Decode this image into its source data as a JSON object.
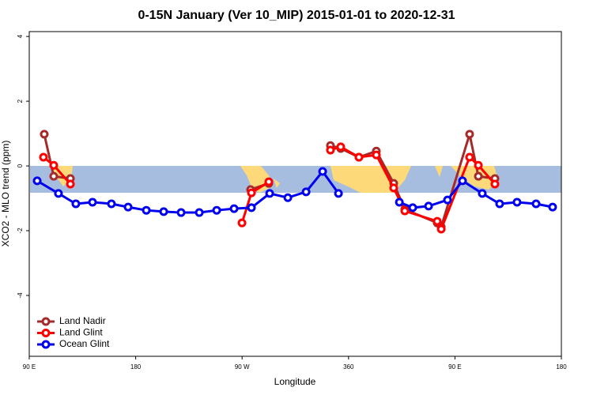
{
  "chart_data": {
    "type": "line",
    "title": "0-15N January (Ver 10_MIP)   2015-01-01 to 2020-12-31",
    "x_label": "Longitude",
    "y_label": "XCO2 - MLO trend (ppm)",
    "xlim": [
      90,
      540
    ],
    "ylim": [
      -5.88,
      4.15
    ],
    "xticks": [
      {
        "value": 90,
        "label": "90 E"
      },
      {
        "value": 180,
        "label": "180"
      },
      {
        "value": 270,
        "label": "90 W"
      },
      360,
      {
        "value": 450,
        "label": "90 E"
      },
      {
        "value": 540,
        "label": "180"
      }
    ],
    "yticks": [
      -4,
      -2,
      0,
      2,
      4
    ],
    "legend": "bottom-left",
    "series": [
      {
        "name": "Land Nadir",
        "color": "#a52a2a",
        "x": [
          102.7,
          110.7,
          124.8,
          null,
          277.2,
          292.6,
          null,
          344.7,
          353.4,
          368.8,
          383.5,
          398.2,
          407.6,
          435,
          438.4,
          462.4,
          469.8,
          483.8
        ],
        "values": [
          0.98,
          -0.32,
          -0.39,
          null,
          -0.73,
          -0.54,
          null,
          0.63,
          0.54,
          0.27,
          0.46,
          -0.54,
          -1.34,
          -1.76,
          -1.88,
          0.98,
          -0.32,
          -0.39
        ]
      },
      {
        "name": "Land Glint",
        "color": "#ff0000",
        "x": [
          102,
          110.7,
          124.8,
          null,
          269.9,
          277.9,
          292.6,
          null,
          344.7,
          353.4,
          368.8,
          383.5,
          398.2,
          407.6,
          435,
          438.4,
          462.4,
          469.8,
          483.8
        ],
        "values": [
          0.27,
          0.02,
          -0.56,
          null,
          -1.76,
          -0.83,
          -0.49,
          null,
          0.49,
          0.59,
          0.27,
          0.34,
          -0.68,
          -1.39,
          -1.71,
          -1.95,
          0.27,
          0.02,
          -0.56
        ]
      },
      {
        "name": "Ocean Glint",
        "color": "#0000ee",
        "x": [
          96.7,
          114.7,
          129.4,
          143.5,
          159.5,
          173.6,
          189,
          203.7,
          218.4,
          233.8,
          248.5,
          263.2,
          277.9,
          293.3,
          308.7,
          324.1,
          338.1,
          351.5,
          null,
          403,
          414.3,
          427.7,
          443.7,
          456.4,
          473.1,
          487.8,
          502.5,
          518.6,
          532.6
        ],
        "values": [
          -0.46,
          -0.85,
          -1.17,
          -1.12,
          -1.17,
          -1.27,
          -1.37,
          -1.41,
          -1.44,
          -1.44,
          -1.37,
          -1.32,
          -1.29,
          -0.85,
          -0.98,
          -0.8,
          -0.17,
          -0.85,
          null,
          -1.12,
          -1.29,
          -1.24,
          -1.05,
          -0.46,
          -0.85,
          -1.17,
          -1.12,
          -1.17,
          -1.27
        ]
      }
    ]
  }
}
